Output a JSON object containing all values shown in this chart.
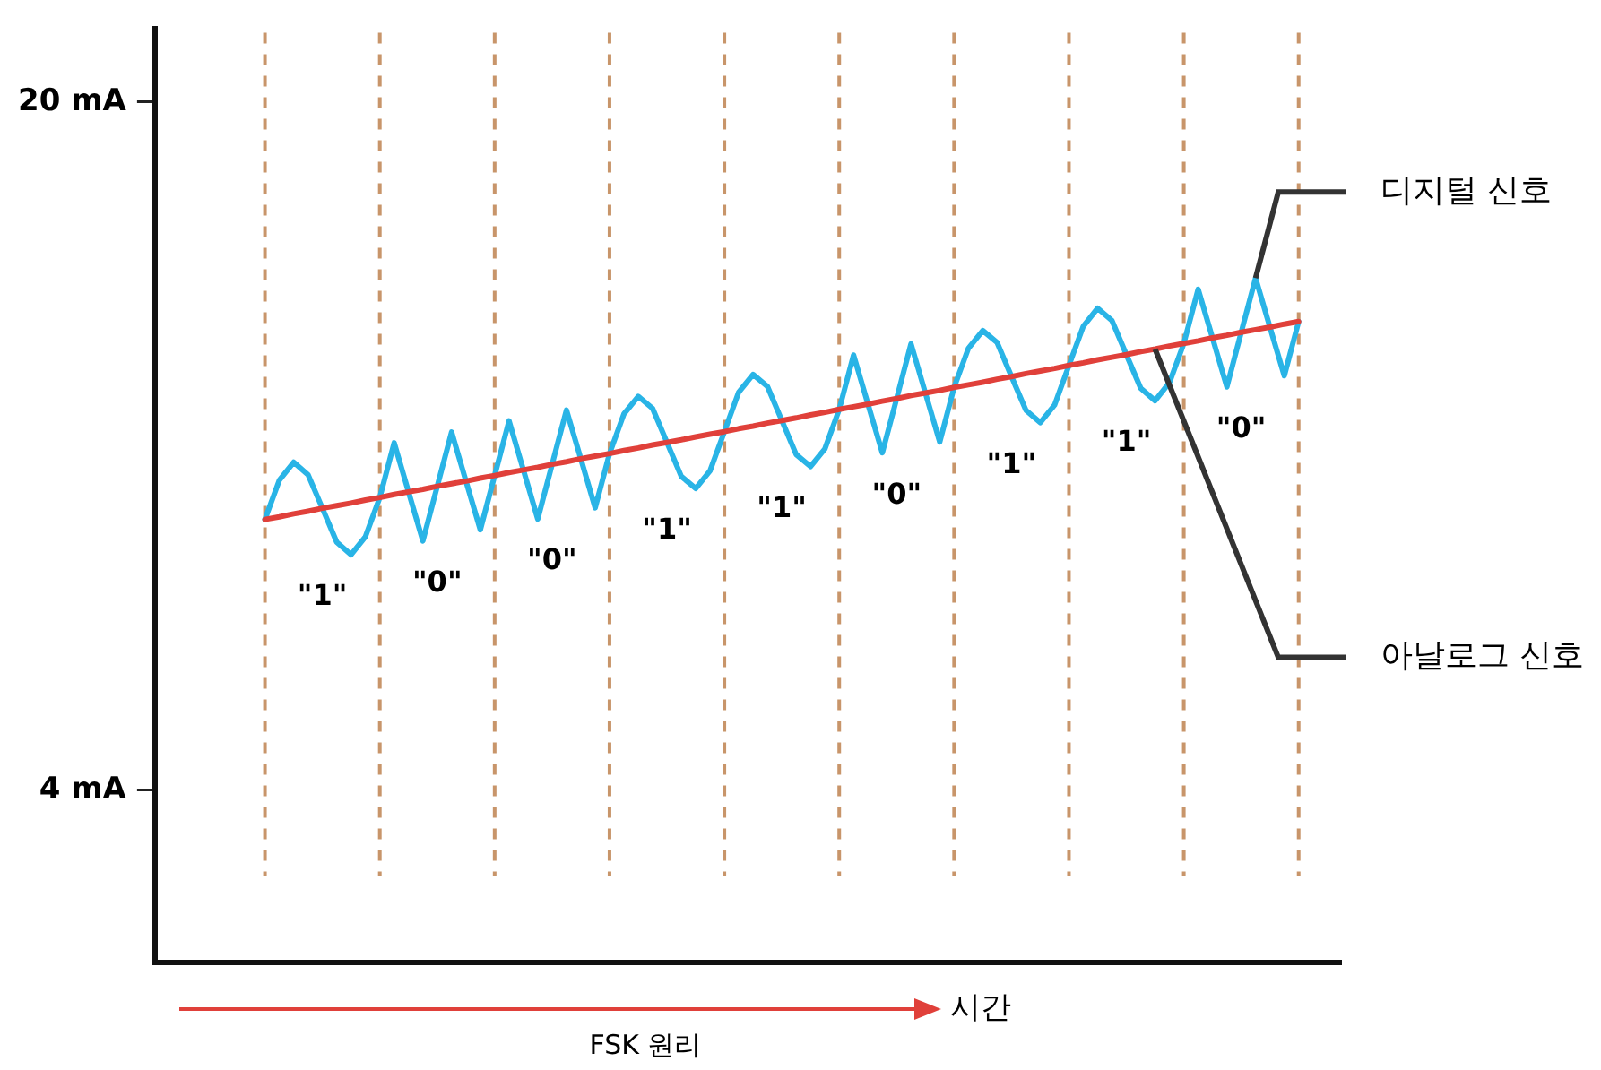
{
  "chart_data": {
    "type": "line",
    "xlabel": "시간",
    "ylim": [
      0,
      21.7
    ],
    "yticks": [
      {
        "value": 4,
        "label": "4 mA"
      },
      {
        "value": 20,
        "label": "20 mA"
      }
    ],
    "tick_labels": "y",
    "grid": "x",
    "legend": false,
    "marker": "none",
    "line_style": "solid",
    "categories": [
      null,
      null,
      null,
      null,
      null,
      null,
      null,
      null,
      null,
      null,
      null,
      null,
      null,
      null,
      null,
      null,
      null,
      null,
      null,
      null,
      null,
      null,
      null,
      null,
      null,
      null,
      null,
      null,
      null,
      null,
      null,
      null,
      null,
      null,
      null,
      null,
      null,
      null,
      null,
      null,
      null,
      null,
      null,
      null,
      null,
      null,
      null,
      null,
      null,
      null,
      null,
      null,
      null,
      null,
      null,
      null,
      null,
      null,
      null,
      null,
      null,
      null,
      null,
      null,
      null,
      null,
      null,
      null,
      null,
      null,
      null,
      null,
      null
    ],
    "series": [
      {
        "name": "디지털 신호",
        "color": "#29b4e6",
        "values": [
          10.3,
          11.21,
          11.63,
          11.34,
          10.56,
          9.77,
          9.48,
          9.9,
          10.81,
          12.08,
          10.94,
          9.8,
          11.07,
          12.33,
          11.19,
          10.06,
          11.32,
          12.59,
          11.45,
          10.31,
          11.58,
          12.84,
          11.71,
          10.57,
          11.83,
          12.75,
          13.16,
          12.88,
          12.09,
          11.3,
          11.02,
          11.43,
          12.34,
          13.26,
          13.67,
          13.39,
          12.6,
          11.81,
          11.53,
          11.94,
          12.86,
          14.12,
          12.98,
          11.85,
          13.11,
          14.38,
          13.24,
          12.1,
          13.37,
          14.28,
          14.69,
          14.41,
          13.62,
          12.84,
          12.55,
          12.96,
          13.88,
          14.79,
          15.21,
          14.92,
          14.13,
          13.35,
          13.06,
          13.48,
          14.39,
          15.65,
          14.52,
          13.38,
          14.65,
          15.91,
          14.77,
          13.64,
          14.9
        ]
      },
      {
        "name": "아날로그 신호",
        "color": "#e0403a",
        "values": [
          10.3,
          10.36,
          10.43,
          10.49,
          10.56,
          10.62,
          10.68,
          10.75,
          10.81,
          10.88,
          10.94,
          11.0,
          11.07,
          11.13,
          11.19,
          11.26,
          11.32,
          11.39,
          11.45,
          11.51,
          11.58,
          11.64,
          11.71,
          11.77,
          11.83,
          11.9,
          11.96,
          12.03,
          12.09,
          12.15,
          12.22,
          12.28,
          12.34,
          12.41,
          12.47,
          12.54,
          12.6,
          12.66,
          12.73,
          12.79,
          12.86,
          12.92,
          12.98,
          13.05,
          13.11,
          13.18,
          13.24,
          13.3,
          13.37,
          13.43,
          13.49,
          13.56,
          13.62,
          13.69,
          13.75,
          13.81,
          13.88,
          13.94,
          14.01,
          14.07,
          14.13,
          14.2,
          14.26,
          14.33,
          14.39,
          14.45,
          14.52,
          14.58,
          14.65,
          14.71,
          14.77,
          14.84,
          14.9
        ]
      }
    ],
    "annotations": [
      "\"1\"",
      "\"0\"",
      "\"0\"",
      "\"1\"",
      "\"1\"",
      "\"0\"",
      "\"1\"",
      "\"1\"",
      "\"0\"",
      "FSK 원리"
    ]
  }
}
